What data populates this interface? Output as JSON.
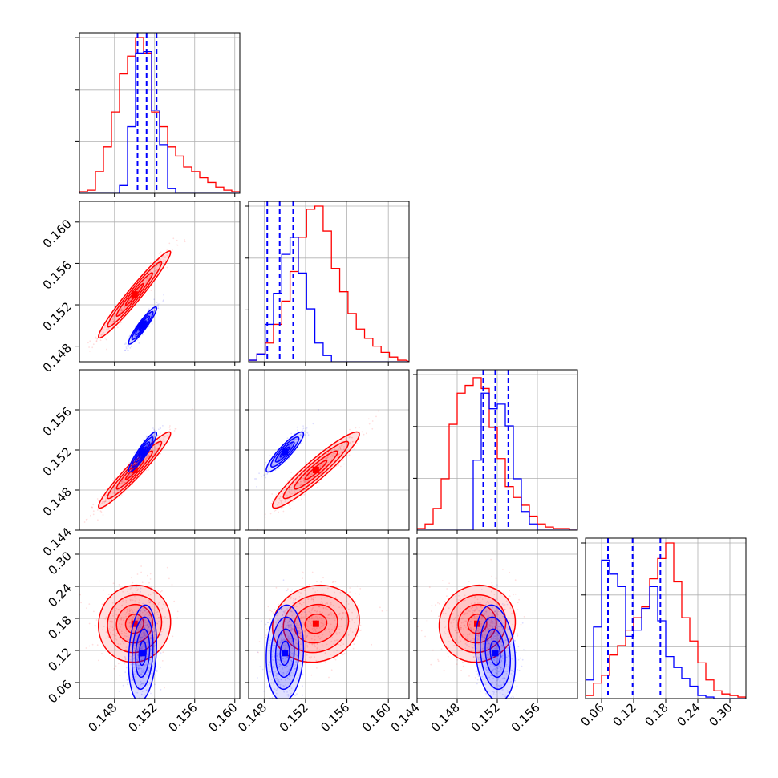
{
  "chart_data": {
    "type": "corner",
    "n_params": 4,
    "colors": {
      "red": "#ff0000",
      "blue": "#0000ff",
      "grid": "#b0b0b0",
      "axes": "#000000"
    },
    "series": [
      {
        "color": "red"
      },
      {
        "color": "blue"
      }
    ],
    "grid": true,
    "params": [
      {
        "range": [
          0.1445,
          0.1605
        ],
        "ticks": [
          0.148,
          0.152,
          0.156,
          0.16
        ],
        "tick_labels": [
          "0.148",
          "0.152",
          "0.156",
          "0.160"
        ]
      },
      {
        "range": [
          0.1465,
          0.162
        ],
        "ticks": [
          0.148,
          0.152,
          0.156,
          0.16
        ],
        "tick_labels": [
          "0.148",
          "0.152",
          "0.156",
          "0.160"
        ]
      },
      {
        "range": [
          0.144,
          0.16
        ],
        "ticks": [
          0.144,
          0.148,
          0.152,
          0.156
        ],
        "tick_labels": [
          "0.144",
          "0.148",
          "0.152",
          "0.156"
        ]
      },
      {
        "range": [
          0.03,
          0.33
        ],
        "ticks": [
          0.06,
          0.12,
          0.18,
          0.24,
          0.3
        ],
        "tick_labels": [
          "0.06",
          "0.12",
          "0.18",
          "0.24",
          "0.30"
        ]
      }
    ],
    "marginals": [
      {
        "bin_edges": [
          0.1445,
          0.1453,
          0.1461,
          0.1469,
          0.1477,
          0.1485,
          0.1493,
          0.1501,
          0.1509,
          0.1517,
          0.1525,
          0.1533,
          0.1541,
          0.1549,
          0.1557,
          0.1565,
          0.1573,
          0.1581,
          0.1589,
          0.1597,
          0.1605
        ],
        "red": [
          0.01,
          0.02,
          0.14,
          0.3,
          0.52,
          0.77,
          0.88,
          1.0,
          0.9,
          0.52,
          0.43,
          0.3,
          0.24,
          0.17,
          0.14,
          0.1,
          0.07,
          0.04,
          0.02,
          0.01
        ],
        "blue": [
          0,
          0,
          0,
          0,
          0,
          0.05,
          0.43,
          0.9,
          0.91,
          0.53,
          0.31,
          0.03,
          0,
          0,
          0,
          0,
          0,
          0,
          0,
          0
        ],
        "quantiles": [
          0.1503,
          0.1512,
          0.1522
        ]
      },
      {
        "bin_edges": [
          0.1465,
          0.1473,
          0.1481,
          0.1489,
          0.1497,
          0.1505,
          0.1513,
          0.1521,
          0.1529,
          0.1537,
          0.1545,
          0.1553,
          0.1561,
          0.1569,
          0.1577,
          0.1585,
          0.1593,
          0.1601,
          0.1609,
          0.1617
        ],
        "red": [
          0.01,
          0.05,
          0.12,
          0.24,
          0.39,
          0.58,
          0.8,
          0.98,
          1.0,
          0.84,
          0.6,
          0.45,
          0.31,
          0.21,
          0.15,
          0.1,
          0.06,
          0.03,
          0.01
        ],
        "blue": [
          0.01,
          0.05,
          0.24,
          0.44,
          0.69,
          0.8,
          0.57,
          0.34,
          0.12,
          0.04,
          0,
          0,
          0,
          0,
          0,
          0,
          0,
          0,
          0
        ],
        "quantiles": [
          0.1483,
          0.1495,
          0.1508
        ]
      },
      {
        "bin_edges": [
          0.144,
          0.1448,
          0.1456,
          0.1464,
          0.1472,
          0.148,
          0.1488,
          0.1496,
          0.1504,
          0.1512,
          0.152,
          0.1528,
          0.1536,
          0.1544,
          0.1552,
          0.156,
          0.1568,
          0.1576,
          0.1584,
          0.1592,
          0.16
        ],
        "red": [
          0.01,
          0.04,
          0.14,
          0.33,
          0.68,
          0.88,
          0.93,
          0.98,
          0.91,
          0.66,
          0.46,
          0.28,
          0.21,
          0.16,
          0.09,
          0.04,
          0.02,
          0.01,
          0.01,
          0
        ],
        "blue": [
          0,
          0,
          0,
          0,
          0,
          0,
          0,
          0.45,
          0.88,
          0.78,
          0.81,
          0.67,
          0.33,
          0.12,
          0.04,
          0,
          0,
          0,
          0,
          0
        ],
        "quantiles": [
          0.1506,
          0.1518,
          0.1531
        ]
      },
      {
        "bin_edges": [
          0.03,
          0.045,
          0.06,
          0.075,
          0.09,
          0.105,
          0.12,
          0.135,
          0.15,
          0.165,
          0.18,
          0.195,
          0.21,
          0.225,
          0.24,
          0.255,
          0.27,
          0.285,
          0.3,
          0.315,
          0.33
        ],
        "red": [
          0.02,
          0.1,
          0.15,
          0.28,
          0.34,
          0.44,
          0.52,
          0.59,
          0.77,
          0.9,
          1.0,
          0.75,
          0.52,
          0.37,
          0.23,
          0.12,
          0.05,
          0.03,
          0.02,
          0.01
        ],
        "blue": [
          0.12,
          0.46,
          0.89,
          0.8,
          0.72,
          0.4,
          0.44,
          0.58,
          0.72,
          0.5,
          0.27,
          0.2,
          0.13,
          0.08,
          0.02,
          0.01,
          0,
          0,
          0,
          0
        ],
        "quantiles": [
          0.072,
          0.118,
          0.17
        ]
      }
    ],
    "joint": {
      "red": {
        "means": [
          0.15,
          0.153,
          0.15,
          0.17
        ],
        "sds": [
          0.0018,
          0.0021,
          0.0019,
          0.036
        ],
        "corr": [
          [
            1,
            0.97,
            0.96,
            0.05
          ],
          [
            0.97,
            1,
            0.94,
            0.1
          ],
          [
            0.96,
            0.94,
            1,
            0.05
          ],
          [
            0.05,
            0.1,
            0.05,
            1
          ]
        ]
      },
      "blue": {
        "means": [
          0.1508,
          0.15,
          0.1518,
          0.115
        ],
        "sds": [
          0.0007,
          0.0009,
          0.001,
          0.045
        ],
        "corr": [
          [
            1,
            0.93,
            0.92,
            0.2
          ],
          [
            0.93,
            1,
            0.9,
            0.1
          ],
          [
            0.92,
            0.9,
            1,
            -0.2
          ],
          [
            0.2,
            0.1,
            -0.2,
            1
          ]
        ]
      },
      "contour_levels_sigma": [
        0.5,
        1.0,
        1.5,
        2.0
      ]
    }
  }
}
